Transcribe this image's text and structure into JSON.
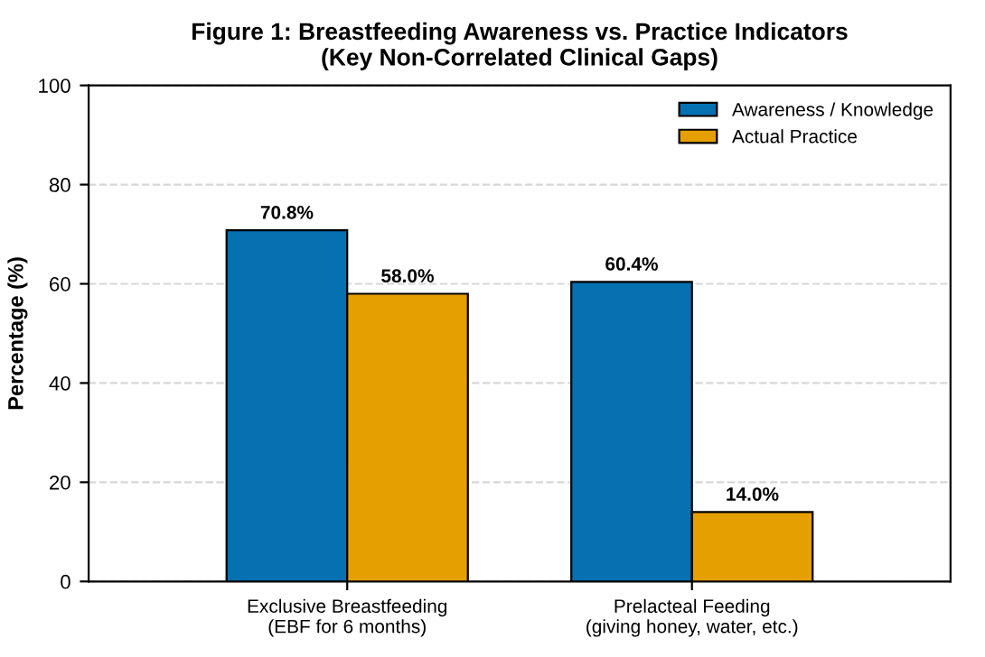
{
  "chart_data": {
    "type": "bar",
    "title": "Figure 1: Breastfeeding Awareness vs. Practice Indicators\n(Key Non-Correlated Clinical Gaps)",
    "ylabel": "Percentage (%)",
    "categories": [
      "Exclusive Breastfeeding\n(EBF for 6 months)",
      "Prelacteal Feeding\n(giving honey, water, etc.)"
    ],
    "series": [
      {
        "name": "Awareness / Knowledge",
        "color": "#0571b0",
        "values": [
          70.8,
          60.4
        ],
        "value_labels": [
          "70.8%",
          "60.4%"
        ]
      },
      {
        "name": "Actual Practice",
        "color": "#e69f00",
        "values": [
          58.0,
          14.0
        ],
        "value_labels": [
          "58.0%",
          "14.0%"
        ]
      }
    ],
    "ylim": [
      0,
      100
    ],
    "yticks": [
      0,
      20,
      40,
      60,
      80,
      100
    ],
    "grid": "y",
    "legend": "top right"
  }
}
